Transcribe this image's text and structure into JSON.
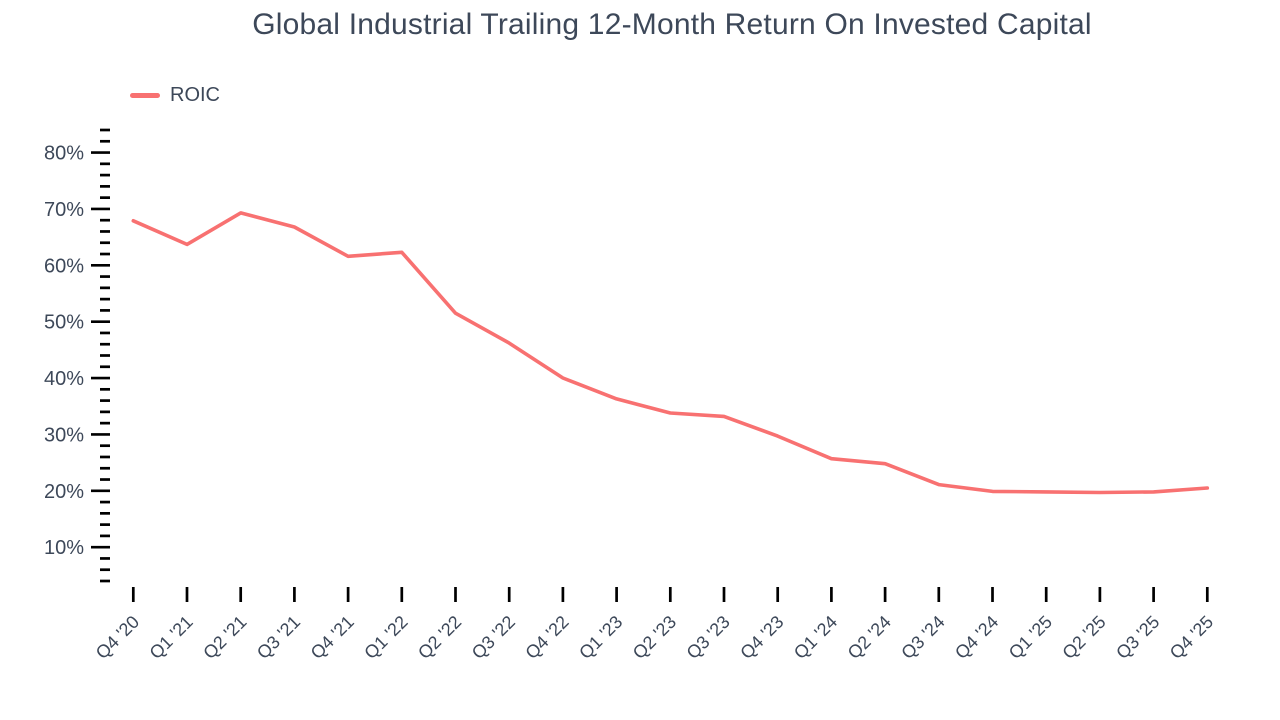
{
  "header": {
    "title": "Global Industrial Trailing 12-Month Return On Invested Capital"
  },
  "legend": {
    "label": "ROIC"
  },
  "colors": {
    "line": "#f87171",
    "text": "#3d4859",
    "tick": "#000000",
    "background": "#ffffff"
  },
  "chart_data": {
    "type": "line",
    "title": "Global Industrial Trailing 12-Month Return On Invested Capital",
    "xlabel": "",
    "ylabel": "",
    "grid": false,
    "legend_position": "top-left",
    "y_axis": {
      "min": 4,
      "max": 84,
      "minor_step": 2,
      "major_step": 10,
      "major_first": 10,
      "major_last": 80,
      "tick_format": "percent"
    },
    "y_major_tick_labels": [
      "10%",
      "20%",
      "30%",
      "40%",
      "50%",
      "60%",
      "70%",
      "80%"
    ],
    "categories": [
      "Q4 '20",
      "Q1 '21",
      "Q2 '21",
      "Q3 '21",
      "Q4 '21",
      "Q1 '22",
      "Q2 '22",
      "Q3 '22",
      "Q4 '22",
      "Q1 '23",
      "Q2 '23",
      "Q3 '23",
      "Q4 '23",
      "Q1 '24",
      "Q2 '24",
      "Q3 '24",
      "Q4 '24",
      "Q1 '25",
      "Q2 '25",
      "Q3 '25",
      "Q4 '25"
    ],
    "series": [
      {
        "name": "ROIC",
        "color": "#f87171",
        "unit": "%",
        "values": [
          67.9,
          63.7,
          69.3,
          66.8,
          61.6,
          62.3,
          51.5,
          46.2,
          40.0,
          36.3,
          33.8,
          33.2,
          29.7,
          25.7,
          24.8,
          21.1,
          19.9,
          19.8,
          19.7,
          19.8,
          20.5
        ]
      }
    ]
  }
}
